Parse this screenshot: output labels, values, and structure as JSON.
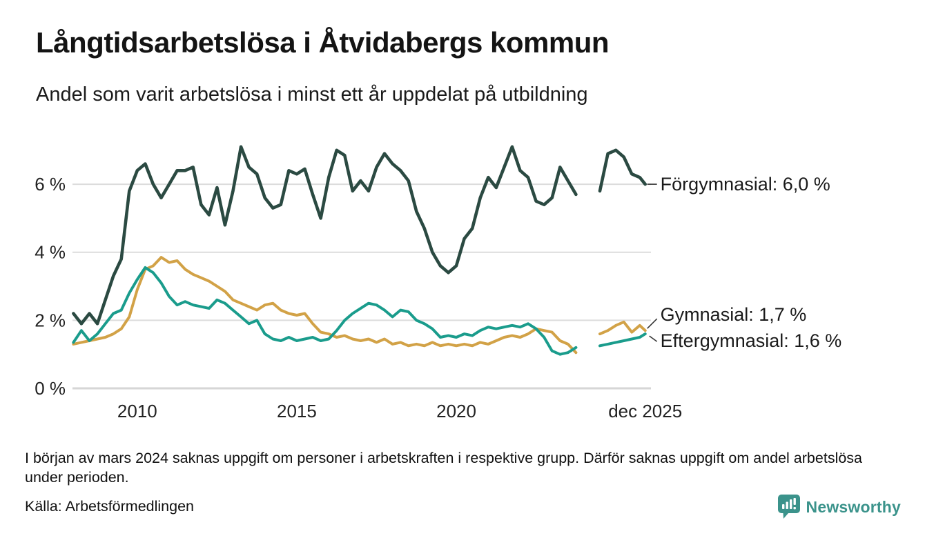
{
  "header": {
    "title": "Långtidsarbetslösa i Åtvidabergs kommun",
    "subtitle": "Andel som varit arbetslösa i minst ett år uppdelat på utbildning"
  },
  "chart_data": {
    "type": "line",
    "title": "Långtidsarbetslösa i Åtvidabergs kommun",
    "subtitle": "Andel som varit arbetslösa i minst ett år uppdelat på utbildning",
    "x_unit": "decimal_year",
    "xlim": [
      2007.97,
      2026.1
    ],
    "ylim": [
      0,
      7.36
    ],
    "grid": true,
    "legend_position": "right-end-labels",
    "yticks": [
      {
        "v": 0,
        "label": "0 %"
      },
      {
        "v": 2,
        "label": "2 %"
      },
      {
        "v": 4,
        "label": "4 %"
      },
      {
        "v": 6,
        "label": "6 %"
      }
    ],
    "xticks": [
      {
        "v": 2010,
        "label": "2010"
      },
      {
        "v": 2015,
        "label": "2015"
      },
      {
        "v": 2020,
        "label": "2020"
      },
      {
        "v": 2025.92,
        "label": "dec 2025"
      }
    ],
    "gap_note": "data missing around early 2024",
    "x": [
      2008.0,
      2008.25,
      2008.5,
      2008.75,
      2009.0,
      2009.25,
      2009.5,
      2009.75,
      2010.0,
      2010.25,
      2010.5,
      2010.75,
      2011.0,
      2011.25,
      2011.5,
      2011.75,
      2012.0,
      2012.25,
      2012.5,
      2012.75,
      2013.0,
      2013.25,
      2013.5,
      2013.75,
      2014.0,
      2014.25,
      2014.5,
      2014.75,
      2015.0,
      2015.25,
      2015.5,
      2015.75,
      2016.0,
      2016.25,
      2016.5,
      2016.75,
      2017.0,
      2017.25,
      2017.5,
      2017.75,
      2018.0,
      2018.25,
      2018.5,
      2018.75,
      2019.0,
      2019.25,
      2019.5,
      2019.75,
      2020.0,
      2020.25,
      2020.5,
      2020.75,
      2021.0,
      2021.25,
      2021.5,
      2021.75,
      2022.0,
      2022.25,
      2022.5,
      2022.75,
      2023.0,
      2023.25,
      2023.5,
      2023.75,
      2024.0,
      2024.25,
      2024.5,
      2024.75,
      2025.0,
      2025.25,
      2025.5,
      2025.75,
      2025.92
    ],
    "series": [
      {
        "name": "Förgymnasial",
        "end_label": "Förgymnasial: 6,0 %",
        "end_value": "6,0 %",
        "color": "#2b4a42",
        "values": [
          2.2,
          1.9,
          2.2,
          1.9,
          2.6,
          3.3,
          3.8,
          5.8,
          6.4,
          6.6,
          6.0,
          5.6,
          6.0,
          6.4,
          6.4,
          6.5,
          5.4,
          5.1,
          5.9,
          4.8,
          5.8,
          7.1,
          6.5,
          6.3,
          5.6,
          5.3,
          5.4,
          6.4,
          6.3,
          6.45,
          5.7,
          5.0,
          6.2,
          7.0,
          6.85,
          5.8,
          6.1,
          5.8,
          6.5,
          6.9,
          6.6,
          6.4,
          6.1,
          5.2,
          4.7,
          4.0,
          3.6,
          3.4,
          3.6,
          4.4,
          4.7,
          5.6,
          6.2,
          5.9,
          6.5,
          7.1,
          6.4,
          6.2,
          5.5,
          5.4,
          5.6,
          6.5,
          6.1,
          5.7,
          null,
          null,
          5.8,
          6.9,
          7.0,
          6.8,
          6.3,
          6.2,
          6.0
        ]
      },
      {
        "name": "Gymnasial",
        "end_label": "Gymnasial: 1,7 %",
        "end_value": "1,7 %",
        "color": "#d2a247",
        "values": [
          1.3,
          1.35,
          1.4,
          1.45,
          1.5,
          1.6,
          1.75,
          2.1,
          2.9,
          3.5,
          3.6,
          3.85,
          3.7,
          3.75,
          3.5,
          3.35,
          3.25,
          3.15,
          3.0,
          2.85,
          2.6,
          2.5,
          2.4,
          2.3,
          2.45,
          2.5,
          2.3,
          2.2,
          2.15,
          2.2,
          1.9,
          1.65,
          1.6,
          1.5,
          1.55,
          1.45,
          1.4,
          1.45,
          1.35,
          1.45,
          1.3,
          1.35,
          1.25,
          1.3,
          1.25,
          1.35,
          1.25,
          1.3,
          1.25,
          1.3,
          1.25,
          1.35,
          1.3,
          1.4,
          1.5,
          1.55,
          1.5,
          1.6,
          1.75,
          1.7,
          1.65,
          1.4,
          1.3,
          1.05,
          null,
          null,
          1.6,
          1.7,
          1.85,
          1.95,
          1.65,
          1.85,
          1.7
        ]
      },
      {
        "name": "Eftergymnasial",
        "end_label": "Eftergymnasial: 1,6 %",
        "end_value": "1,6 %",
        "color": "#1a9c8c",
        "values": [
          1.35,
          1.7,
          1.4,
          1.6,
          1.9,
          2.2,
          2.3,
          2.8,
          3.2,
          3.55,
          3.4,
          3.1,
          2.7,
          2.45,
          2.55,
          2.45,
          2.4,
          2.35,
          2.6,
          2.5,
          2.3,
          2.1,
          1.9,
          2.0,
          1.6,
          1.45,
          1.4,
          1.5,
          1.4,
          1.45,
          1.5,
          1.4,
          1.45,
          1.7,
          2.0,
          2.2,
          2.35,
          2.5,
          2.45,
          2.3,
          2.1,
          2.3,
          2.25,
          2.0,
          1.9,
          1.75,
          1.5,
          1.55,
          1.5,
          1.6,
          1.55,
          1.7,
          1.8,
          1.75,
          1.8,
          1.85,
          1.8,
          1.9,
          1.75,
          1.5,
          1.1,
          1.0,
          1.05,
          1.2,
          null,
          null,
          1.25,
          1.3,
          1.35,
          1.4,
          1.45,
          1.5,
          1.6
        ]
      }
    ]
  },
  "footnote": "I början av mars 2024 saknas uppgift om personer i arbetskraften i respektive grupp. Därför saknas uppgift om andel arbetslösa under perioden.",
  "source": "Källa: Arbetsförmedlingen",
  "branding": {
    "name": "Newsworthy",
    "color": "#3b938b"
  },
  "colors": {
    "grid": "#dcdcdc",
    "zero_line": "#d6d6d6",
    "text": "#141414",
    "tick_text": "#222222"
  }
}
